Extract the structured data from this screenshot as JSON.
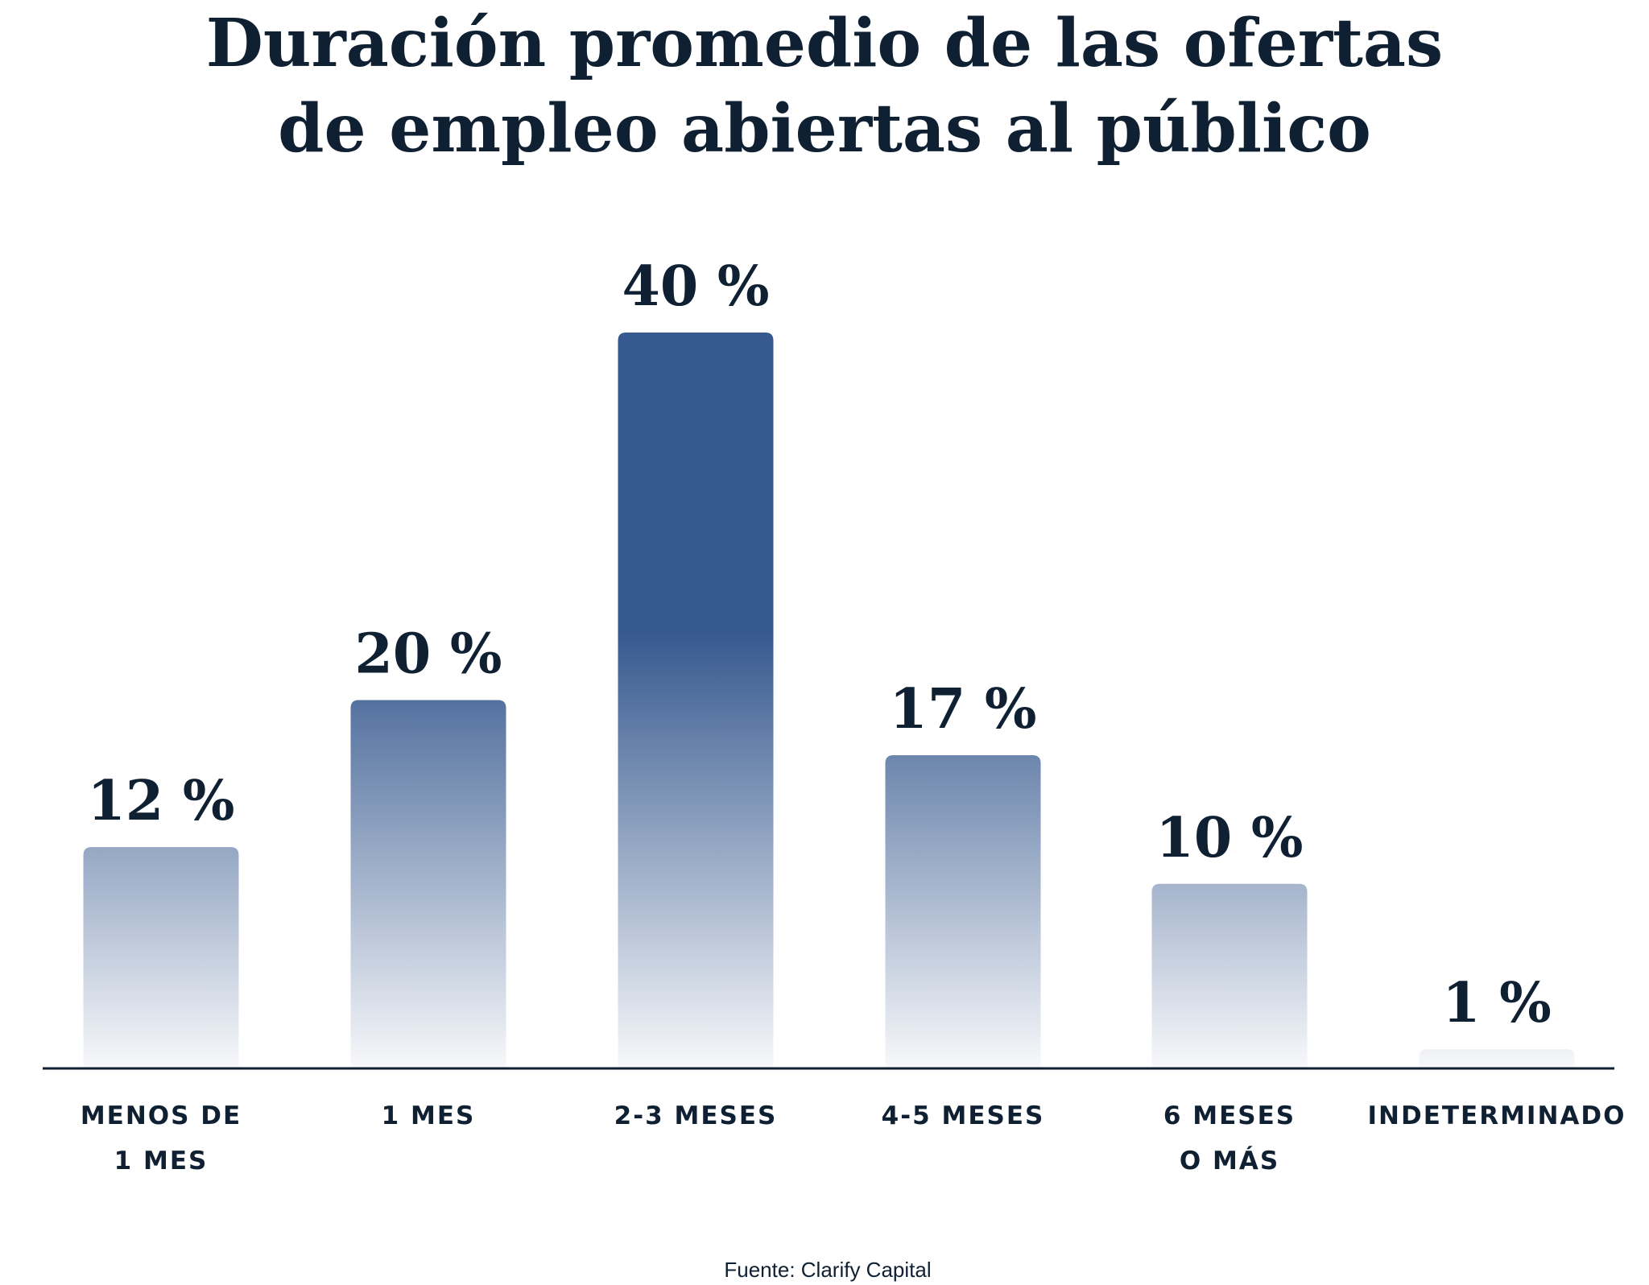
{
  "chart_data": {
    "type": "bar",
    "title": [
      "Duración promedio de las ofertas",
      "de empleo abiertas al público"
    ],
    "categories": [
      [
        "MENOS DE",
        "1 MES"
      ],
      [
        "1 MES"
      ],
      [
        "2-3 MESES"
      ],
      [
        "4-5 MESES"
      ],
      [
        "6 MESES",
        "O MÁS"
      ],
      [
        "INDETERMINADO"
      ]
    ],
    "values": [
      12,
      20,
      40,
      17,
      10,
      1
    ],
    "value_labels": [
      "12 %",
      "20 %",
      "40 %",
      "17 %",
      "10 %",
      "1 %"
    ],
    "unit": "%",
    "ylim": [
      0,
      40
    ],
    "grid": false,
    "source": "Fuente: Clarify Capital",
    "colors": {
      "bar_top": "#36598f",
      "bar_bottom": "#f7f8fa",
      "text": "#0f2033",
      "axis": "#0f2033"
    }
  }
}
